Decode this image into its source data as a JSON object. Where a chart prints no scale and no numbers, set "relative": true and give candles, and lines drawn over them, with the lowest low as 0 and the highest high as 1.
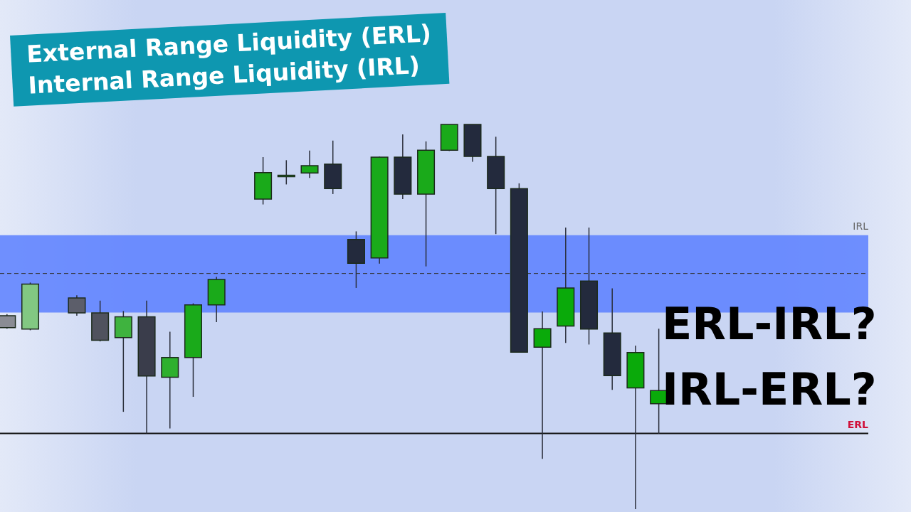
{
  "chart_data": {
    "type": "candlestick",
    "title": "External Range Liquidity (ERL)",
    "subtitle": "Internal Range Liquidity (IRL)",
    "relative": true,
    "categories": [
      null,
      null,
      null,
      null,
      null,
      null,
      null,
      null,
      null,
      null,
      null,
      null,
      null,
      null,
      null,
      null,
      null,
      null,
      null,
      null,
      null,
      null,
      null,
      null,
      null,
      null,
      null,
      null,
      null
    ],
    "ohlc": [
      [
        0.503,
        0.507,
        0.469,
        0.472
      ],
      [
        0.468,
        0.589,
        0.465,
        0.585
      ],
      null,
      [
        0.549,
        0.556,
        0.503,
        0.51
      ],
      [
        0.51,
        0.542,
        0.436,
        0.439
      ],
      [
        0.446,
        0.515,
        0.253,
        0.5
      ],
      [
        0.5,
        0.542,
        0.197,
        0.346
      ],
      [
        0.343,
        0.461,
        0.21,
        0.394
      ],
      [
        0.394,
        0.535,
        0.292,
        0.531
      ],
      [
        0.531,
        0.604,
        0.486,
        0.597
      ],
      null,
      [
        0.806,
        0.915,
        0.792,
        0.875
      ],
      [
        0.864,
        0.907,
        0.844,
        0.868
      ],
      [
        0.874,
        0.932,
        0.861,
        0.893
      ],
      [
        0.897,
        0.958,
        0.819,
        0.833
      ],
      [
        0.701,
        0.722,
        0.575,
        0.639
      ],
      [
        0.653,
        0.917,
        0.638,
        0.915
      ],
      [
        0.915,
        0.974,
        0.806,
        0.819
      ],
      [
        0.819,
        0.956,
        0.631,
        0.933
      ],
      [
        0.933,
        1,
        0.931,
        1
      ],
      [
        1,
        1,
        0.903,
        0.917
      ],
      [
        0.917,
        0.968,
        0.715,
        0.833
      ],
      [
        0.833,
        0.847,
        0.408,
        0.408
      ],
      [
        0.421,
        0.514,
        0.131,
        0.469
      ],
      [
        0.476,
        0.732,
        0.432,
        0.575
      ],
      [
        0.593,
        0.732,
        0.428,
        0.468
      ],
      [
        0.458,
        0.574,
        0.31,
        0.347
      ],
      [
        0.315,
        0.425,
        0,
        0.407
      ],
      [
        0.274,
        0.469,
        0.196,
        0.308
      ]
    ],
    "colors": [
      "#8a8c94",
      "#82c882",
      null,
      "#5c5e6a",
      "#50525e",
      "#3fb33f",
      "#3a3d4b",
      "#2eb02e",
      "#1aaa1a",
      "#1aaa1a",
      null,
      "#1aaa1a",
      "#1aaa1a",
      "#1aaa1a",
      "#232a3d",
      "#232a3d",
      "#1aaa1a",
      "#232a3d",
      "#1aaa1a",
      "#1aaa1a",
      "#232a3d",
      "#232a3d",
      "#232a3d",
      "#0aaa0a",
      "#0aaa0a",
      "#232a3d",
      "#232a3d",
      "#0aaa0a",
      "#0aaa0a"
    ],
    "bands": [
      {
        "axis": "y",
        "from": 0.511,
        "to": 0.712,
        "label": "IRL",
        "color": "#5b7fff"
      }
    ],
    "ref_lines": [
      {
        "axis": "y",
        "value": 0.6125,
        "label": null,
        "color": "#333333",
        "line_style": "dashed"
      },
      {
        "axis": "y",
        "value": 0.197,
        "label": "ERL",
        "color": "#111111",
        "line_style": "solid"
      }
    ],
    "annotations": [
      "ERL-IRL?",
      "IRL-ERL?"
    ]
  }
}
